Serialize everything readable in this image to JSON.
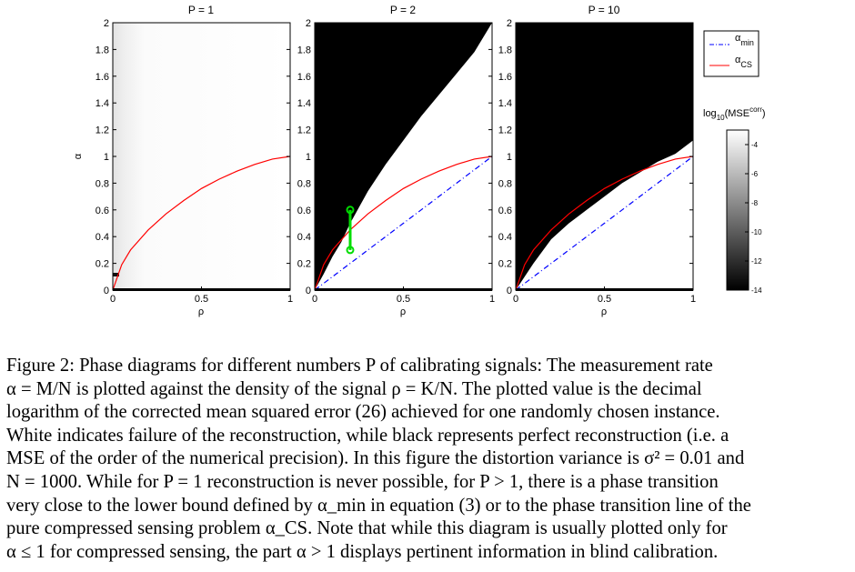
{
  "figure": {
    "panels": [
      {
        "title": "P = 1"
      },
      {
        "title": "P = 2"
      },
      {
        "title": "P = 10"
      }
    ],
    "xlabel": "ρ",
    "ylabel": "α",
    "x_ticks": [
      "0",
      "0.5",
      "1"
    ],
    "y_ticks": [
      "0",
      "0.2",
      "0.4",
      "0.6",
      "0.8",
      "1",
      "1.2",
      "1.4",
      "1.6",
      "1.8",
      "2"
    ],
    "legend": {
      "alpha_min": {
        "base": "α",
        "sub": "min"
      },
      "alpha_cs": {
        "base": "α",
        "sub": "CS"
      }
    },
    "colorbar": {
      "label_prefix": "log",
      "label_sub": "10",
      "label_mid": "(MSE",
      "label_sup": "corr",
      "label_suffix": ")",
      "ticks": [
        "-4",
        "-6",
        "-8",
        "-10",
        "-12",
        "-14"
      ]
    },
    "colors": {
      "alpha_cs": "#ff0000",
      "alpha_min": "#0000ff",
      "marker": "#00dd00"
    }
  },
  "chart_data": {
    "type": "heatmap",
    "xlabel": "ρ",
    "ylabel": "α",
    "xlim": [
      0,
      1
    ],
    "ylim": [
      0,
      2
    ],
    "colorbar_range": [
      -14,
      -3
    ],
    "panels": [
      {
        "title": "P = 1",
        "boundary": null
      },
      {
        "title": "P = 2",
        "boundary": [
          [
            0,
            0
          ],
          [
            0.05,
            0.12
          ],
          [
            0.1,
            0.25
          ],
          [
            0.15,
            0.36
          ],
          [
            0.2,
            0.5
          ],
          [
            0.3,
            0.74
          ],
          [
            0.4,
            0.94
          ],
          [
            0.5,
            1.12
          ],
          [
            0.6,
            1.3
          ],
          [
            0.7,
            1.46
          ],
          [
            0.8,
            1.62
          ],
          [
            0.9,
            1.78
          ],
          [
            1,
            2
          ]
        ]
      },
      {
        "title": "P = 10",
        "boundary": [
          [
            0,
            0
          ],
          [
            0.05,
            0.1
          ],
          [
            0.1,
            0.2
          ],
          [
            0.2,
            0.38
          ],
          [
            0.3,
            0.5
          ],
          [
            0.4,
            0.6
          ],
          [
            0.5,
            0.7
          ],
          [
            0.6,
            0.8
          ],
          [
            0.7,
            0.88
          ],
          [
            0.8,
            0.96
          ],
          [
            0.9,
            1.02
          ],
          [
            1,
            1.12
          ]
        ]
      }
    ],
    "series": [
      {
        "name": "α_min",
        "style": "dash-dot",
        "color": "#0000ff",
        "panels": [
          "P = 2",
          "P = 10"
        ],
        "points": [
          [
            0,
            0
          ],
          [
            0.5,
            0.5
          ],
          [
            1,
            1
          ]
        ]
      },
      {
        "name": "α_CS",
        "style": "solid",
        "color": "#ff0000",
        "panels": [
          "P = 1",
          "P = 2",
          "P = 10"
        ],
        "points": [
          [
            0,
            0
          ],
          [
            0.05,
            0.19
          ],
          [
            0.1,
            0.3
          ],
          [
            0.2,
            0.45
          ],
          [
            0.3,
            0.57
          ],
          [
            0.4,
            0.67
          ],
          [
            0.5,
            0.76
          ],
          [
            0.6,
            0.83
          ],
          [
            0.7,
            0.89
          ],
          [
            0.8,
            0.94
          ],
          [
            0.9,
            0.98
          ],
          [
            1,
            1
          ]
        ]
      }
    ],
    "marker": {
      "panel": "P = 2",
      "x": 0.2,
      "y": [
        0.3,
        0.6
      ]
    }
  },
  "caption": {
    "l1": "Figure 2: Phase diagrams for different numbers P of calibrating signals: The measurement rate",
    "l2": "α = M/N is plotted against the density of the signal ρ = K/N. The plotted value is the decimal",
    "l3": "logarithm of the corrected mean squared error (26) achieved for one randomly chosen instance.",
    "l4": "White indicates failure of the reconstruction, while black represents perfect reconstruction (i.e. a",
    "l5": "MSE of the order of the numerical precision). In this figure the distortion variance is σ² = 0.01 and",
    "l6": "N = 1000. While for P = 1 reconstruction is never possible, for P > 1, there is a phase transition",
    "l7": "very close to the lower bound defined by α_min in equation (3) or to the phase transition line of the",
    "l8": "pure compressed sensing problem α_CS. Note that while this diagram is usually plotted only for",
    "l9": "α ≤ 1 for compressed sensing, the part α > 1 displays pertinent information in blind calibration."
  }
}
